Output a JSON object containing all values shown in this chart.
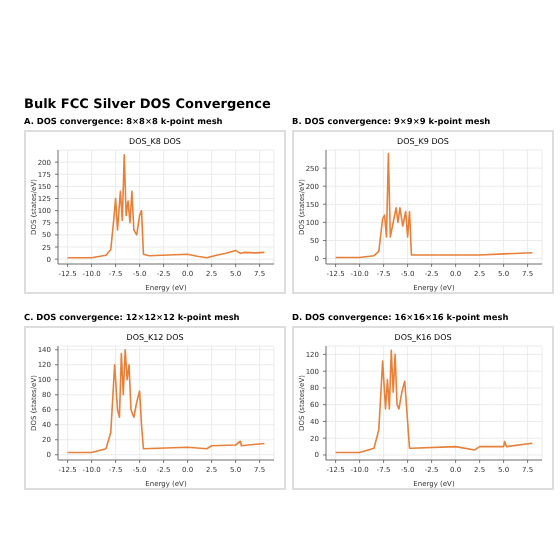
{
  "chart_data": [
    {
      "type": "line",
      "annotations": [
        "Bulk FCC Silver DOS Convergence"
      ],
      "subtitle": "A. DOS convergence: 8×8×8 k-point mesh",
      "title": "DOS_K8 DOS",
      "xlabel": "Energy (eV)",
      "ylabel": "DOS (states/eV)",
      "grid": true,
      "marker": "none",
      "xlim": [
        -13.5,
        9
      ],
      "xticks": [
        -12.5,
        {
          "value": -10,
          "label": "-10.0"
        },
        -7.5,
        {
          "value": -5,
          "label": "-5.0"
        },
        -2.5,
        {
          "value": 0,
          "label": "0.0"
        },
        2.5,
        {
          "value": 5,
          "label": "5.0"
        },
        7.5
      ],
      "ylim": [
        -10,
        225
      ],
      "yticks": [
        0,
        25,
        50,
        75,
        100,
        125,
        150,
        175,
        200
      ],
      "x": [
        -12.5,
        -10,
        -8.5,
        -8,
        -7.7,
        -7.5,
        -7.3,
        -7.0,
        -6.8,
        -6.6,
        -6.4,
        -6.2,
        -6.0,
        -5.8,
        -5.6,
        -5.3,
        -5.0,
        -4.8,
        -4.6,
        -4,
        0,
        1,
        2,
        3,
        4,
        5,
        5.5,
        6,
        7,
        8
      ],
      "series": [
        {
          "color": "#e8803a",
          "values": [
            3,
            3,
            8,
            20,
            80,
            125,
            60,
            140,
            80,
            215,
            90,
            120,
            75,
            140,
            60,
            50,
            90,
            100,
            10,
            7,
            10,
            6,
            3,
            8,
            12,
            18,
            12,
            14,
            13,
            14
          ]
        }
      ]
    },
    {
      "type": "line",
      "subtitle": "B. DOS convergence: 9×9×9 k-point mesh",
      "title": "DOS_K9 DOS",
      "xlabel": "Energy (eV)",
      "ylabel": "DOS (states/eV)",
      "grid": true,
      "marker": "none",
      "xlim": [
        -13.5,
        9
      ],
      "xticks": [
        -12.5,
        {
          "value": -10,
          "label": "-10.0"
        },
        -7.5,
        {
          "value": -5,
          "label": "-5.0"
        },
        -2.5,
        {
          "value": 0,
          "label": "0.0"
        },
        2.5,
        {
          "value": 5,
          "label": "5.0"
        },
        7.5
      ],
      "ylim": [
        -15,
        300
      ],
      "yticks": [
        0,
        50,
        100,
        150,
        200,
        250
      ],
      "x": [
        -12.5,
        -10,
        -8.5,
        -8,
        -7.6,
        -7.4,
        -7.2,
        -7.0,
        -6.8,
        -6.5,
        -6.2,
        -6.0,
        -5.8,
        -5.5,
        -5.2,
        -5.0,
        -4.8,
        -4.6,
        0,
        2.5,
        5,
        8
      ],
      "series": [
        {
          "color": "#e8803a",
          "values": [
            3,
            3,
            8,
            20,
            110,
            120,
            60,
            290,
            60,
            100,
            140,
            100,
            140,
            90,
            130,
            60,
            130,
            10,
            10,
            10,
            13,
            16
          ]
        }
      ]
    },
    {
      "type": "line",
      "subtitle": "C. DOS convergence: 12×12×12 k-point mesh",
      "title": "DOS_K12 DOS",
      "xlabel": "Energy (eV)",
      "ylabel": "DOS (states/eV)",
      "grid": true,
      "marker": "none",
      "xlim": [
        -13.5,
        9
      ],
      "xticks": [
        -12.5,
        {
          "value": -10,
          "label": "-10.0"
        },
        -7.5,
        {
          "value": -5,
          "label": "-5.0"
        },
        -2.5,
        {
          "value": 0,
          "label": "0.0"
        },
        2.5,
        {
          "value": 5,
          "label": "5.0"
        },
        7.5
      ],
      "ylim": [
        -7,
        145
      ],
      "yticks": [
        0,
        20,
        40,
        60,
        80,
        100,
        120,
        140
      ],
      "x": [
        -12.5,
        -10,
        -8.5,
        -8,
        -7.6,
        -7.3,
        -7.1,
        -6.9,
        -6.7,
        -6.5,
        -6.3,
        -6.1,
        -5.9,
        -5.6,
        -5.3,
        -5.0,
        -4.8,
        -4.6,
        0,
        2,
        2.5,
        5,
        5.5,
        5.6,
        8
      ],
      "series": [
        {
          "color": "#e8803a",
          "values": [
            3,
            3,
            8,
            30,
            120,
            60,
            50,
            135,
            80,
            140,
            100,
            120,
            60,
            50,
            70,
            85,
            40,
            8,
            10,
            8,
            12,
            13,
            18,
            12,
            15
          ]
        }
      ]
    },
    {
      "type": "line",
      "subtitle": "D. DOS convergence: 16×16×16 k-point mesh",
      "title": "DOS_K16 DOS",
      "xlabel": "Energy (eV)",
      "ylabel": "DOS (states/eV)",
      "grid": true,
      "marker": "none",
      "xlim": [
        -13.5,
        9
      ],
      "xticks": [
        -12.5,
        {
          "value": -10,
          "label": "-10.0"
        },
        -7.5,
        {
          "value": -5,
          "label": "-5.0"
        },
        -2.5,
        {
          "value": 0,
          "label": "0.0"
        },
        2.5,
        {
          "value": 5,
          "label": "5.0"
        },
        7.5
      ],
      "ylim": [
        -6,
        130
      ],
      "yticks": [
        0,
        20,
        40,
        60,
        80,
        100,
        120
      ],
      "x": [
        -12.5,
        -10,
        -8.5,
        -8,
        -7.6,
        -7.3,
        -7.1,
        -6.9,
        -6.7,
        -6.5,
        -6.3,
        -6.1,
        -5.9,
        -5.6,
        -5.3,
        -5.0,
        -4.8,
        -4.6,
        0,
        2,
        2.5,
        5,
        5.1,
        5.3,
        8
      ],
      "series": [
        {
          "color": "#e8803a",
          "values": [
            3,
            3,
            8,
            30,
            112,
            55,
            90,
            55,
            125,
            75,
            120,
            60,
            55,
            75,
            88,
            40,
            8,
            8,
            10,
            6,
            10,
            10,
            16,
            10,
            14
          ]
        }
      ]
    }
  ]
}
